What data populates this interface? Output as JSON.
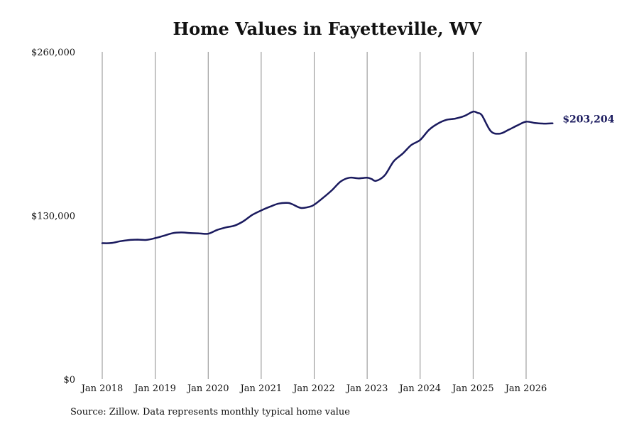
{
  "chart_data": {
    "type": "line",
    "title": "Home Values in Fayetteville, WV",
    "xlabel": "",
    "ylabel": "",
    "y_tick_labels": [
      "$0",
      "$130,000",
      "$260,000"
    ],
    "y_ticks": [
      0,
      130000,
      260000
    ],
    "ylim": [
      0,
      260000
    ],
    "x_tick_labels": [
      "Jan 2018",
      "Jan 2019",
      "Jan 2020",
      "Jan 2021",
      "Jan 2022",
      "Jan 2023",
      "Jan 2024",
      "Jan 2025",
      "Jan 2026"
    ],
    "x_ticks": [
      "2018-01",
      "2019-01",
      "2020-01",
      "2021-01",
      "2022-01",
      "2023-01",
      "2024-01",
      "2025-01",
      "2026-01"
    ],
    "grid": "vertical",
    "line_color": "#1a1a5e",
    "series": [
      {
        "x": [
          "2018-01",
          "2018-03",
          "2018-05",
          "2018-07",
          "2018-09",
          "2018-11",
          "2019-01",
          "2019-03",
          "2019-05",
          "2019-07",
          "2019-09",
          "2019-11",
          "2020-01",
          "2020-03",
          "2020-05",
          "2020-07",
          "2020-09",
          "2020-11",
          "2021-01",
          "2021-03",
          "2021-05",
          "2021-07",
          "2021-08",
          "2021-10",
          "2021-12",
          "2022-01",
          "2022-03",
          "2022-05",
          "2022-07",
          "2022-09",
          "2022-11",
          "2023-01",
          "2023-02",
          "2023-03",
          "2023-05",
          "2023-07",
          "2023-09",
          "2023-11",
          "2024-01",
          "2024-03",
          "2024-05",
          "2024-07",
          "2024-09",
          "2024-11",
          "2025-01",
          "2025-02",
          "2025-03",
          "2025-05",
          "2025-07",
          "2025-09",
          "2025-11",
          "2026-01",
          "2026-03",
          "2026-05",
          "2026-07"
        ],
        "values": [
          108000,
          108100,
          109500,
          110500,
          110800,
          110600,
          112000,
          114000,
          116000,
          116500,
          116000,
          115800,
          115500,
          118500,
          120500,
          122000,
          125500,
          130500,
          134000,
          137000,
          139500,
          140000,
          139000,
          136000,
          137000,
          138500,
          144000,
          150000,
          157000,
          160000,
          159500,
          160000,
          159000,
          157500,
          162000,
          173000,
          179000,
          186000,
          190000,
          198000,
          203000,
          206000,
          207000,
          209000,
          212500,
          211500,
          209500,
          197000,
          195000,
          198000,
          201500,
          204500,
          203500,
          203000,
          203204
        ],
        "end_label": "$203,204"
      }
    ]
  },
  "source": "Source: Zillow. Data represents monthly typical home value"
}
